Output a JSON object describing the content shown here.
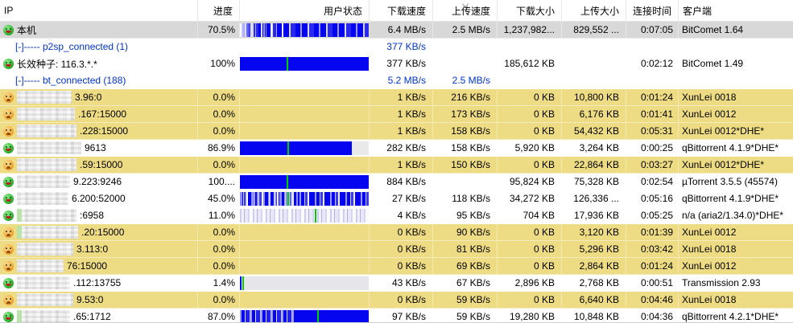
{
  "table": {
    "columns": [
      "IP",
      "进度",
      "用户状态",
      "下载速度",
      "上传速度",
      "下载大小",
      "上传大小",
      "连接时间",
      "客户端"
    ],
    "sorted_column": "上传速度",
    "sort_direction": "descending"
  },
  "colors": {
    "bar_blue": "#0505ef",
    "availability_marker_green": "#00cf00",
    "xunlei_row_yellow": "#eedc85",
    "selected_row_gray": "#d8d8d8",
    "group_text_blue": "#0033cc"
  },
  "icons": {
    "green": "happy-face-icon",
    "orange": "sad-face-icon"
  },
  "rows": [
    {
      "kind": "self",
      "icon": "green",
      "label": "本机",
      "progress": "70.5%",
      "bar": {
        "style": "self"
      },
      "dl_speed": "6.4 MB/s",
      "ul_speed": "2.5 MB/s",
      "dl_size": "1,237,982...",
      "ul_size": "829,552 ...",
      "time": "0:07:05",
      "client": "BitComet 1.64",
      "bg": "selected"
    },
    {
      "kind": "group",
      "label": "[-]----- p2sp_connected (1)",
      "progress": "",
      "bar": {
        "style": "none"
      },
      "dl_speed": "377 KB/s",
      "ul_speed": "",
      "dl_size": "",
      "ul_size": "",
      "time": "",
      "client": "",
      "bg": "white"
    },
    {
      "kind": "peer",
      "icon": "green",
      "label": "长效种子: 116.3.*.*",
      "progress": "100%",
      "bar": {
        "style": "full",
        "green": 36
      },
      "dl_speed": "377 KB/s",
      "ul_speed": "",
      "dl_size": "185,612 KB",
      "ul_size": "",
      "time": "0:02:12",
      "client": "BitComet 1.49",
      "bg": "white"
    },
    {
      "kind": "group",
      "label": "[-]----- bt_connected (188)",
      "progress": "",
      "bar": {
        "style": "none"
      },
      "dl_speed": "5.2 MB/s",
      "ul_speed": "2.5 MB/s",
      "dl_size": "",
      "ul_size": "",
      "time": "",
      "client": "",
      "bg": "white"
    },
    {
      "kind": "peer",
      "icon": "orange",
      "masked": true,
      "mask_w": 68,
      "label": "3.96:0",
      "progress": "0.0%",
      "bar": {
        "style": "none"
      },
      "dl_speed": "1 KB/s",
      "ul_speed": "216 KB/s",
      "dl_size": "0 KB",
      "ul_size": "10,800 KB",
      "time": "0:01:24",
      "client": "XunLei 0018",
      "bg": "yellow"
    },
    {
      "kind": "peer",
      "icon": "orange",
      "masked": true,
      "mask_w": 72,
      "label": ".167:15000",
      "progress": "0.0%",
      "bar": {
        "style": "none"
      },
      "dl_speed": "1 KB/s",
      "ul_speed": "173 KB/s",
      "dl_size": "0 KB",
      "ul_size": "6,176 KB",
      "time": "0:01:41",
      "client": "XunLei 0012",
      "bg": "yellow"
    },
    {
      "kind": "peer",
      "icon": "orange",
      "masked": true,
      "mask_w": 74,
      "label": ".228:15000",
      "progress": "0.0%",
      "bar": {
        "style": "none"
      },
      "dl_speed": "1 KB/s",
      "ul_speed": "158 KB/s",
      "dl_size": "0 KB",
      "ul_size": "54,432 KB",
      "time": "0:05:31",
      "client": "XunLei 0012*DHE*",
      "bg": "yellow"
    },
    {
      "kind": "peer",
      "icon": "green",
      "masked": true,
      "mask_w": 80,
      "label": "9613",
      "progress": "86.9%",
      "bar": {
        "style": "partial",
        "fill": 87,
        "green": 37
      },
      "dl_speed": "282 KB/s",
      "ul_speed": "158 KB/s",
      "dl_size": "5,920 KB",
      "ul_size": "3,264 KB",
      "time": "0:00:25",
      "client": "qBittorrent 4.1.9*DHE*",
      "bg": "white"
    },
    {
      "kind": "peer",
      "icon": "orange",
      "masked": true,
      "mask_w": 74,
      "label": ".59:15000",
      "progress": "0.0%",
      "bar": {
        "style": "none"
      },
      "dl_speed": "1 KB/s",
      "ul_speed": "150 KB/s",
      "dl_size": "0 KB",
      "ul_size": "22,864 KB",
      "time": "0:03:27",
      "client": "XunLei 0012*DHE*",
      "bg": "yellow"
    },
    {
      "kind": "peer",
      "icon": "green",
      "masked": true,
      "mask_w": 66,
      "label": "9.223:9246",
      "progress": "100....",
      "bar": {
        "style": "full",
        "green": 36
      },
      "dl_speed": "884 KB/s",
      "ul_speed": "",
      "dl_size": "95,824 KB",
      "ul_size": "75,328 KB",
      "time": "0:02:54",
      "client": "µTorrent 3.5.5 (45574)",
      "bg": "white"
    },
    {
      "kind": "peer",
      "icon": "green",
      "masked": true,
      "mask_w": 64,
      "label": "6.200:52000",
      "progress": "45.0%",
      "bar": {
        "style": "dense",
        "green": 37
      },
      "dl_speed": "27 KB/s",
      "ul_speed": "118 KB/s",
      "dl_size": "34,272 KB",
      "ul_size": "126,336 ...",
      "time": "0:05:16",
      "client": "qBittorrent 4.1.9*DHE*",
      "bg": "white"
    },
    {
      "kind": "peer",
      "icon": "green",
      "masked": true,
      "mask_w": 74,
      "tint": true,
      "label": ":6958",
      "progress": "11.0%",
      "bar": {
        "style": "light",
        "green": 58
      },
      "dl_speed": "4 KB/s",
      "ul_speed": "95 KB/s",
      "dl_size": "704 KB",
      "ul_size": "17,936 KB",
      "time": "0:05:25",
      "client": "n/a (aria2/1.34.0)*DHE*",
      "bg": "white"
    },
    {
      "kind": "peer",
      "icon": "orange",
      "masked": true,
      "mask_w": 76,
      "tint": true,
      "label": ".20:15000",
      "progress": "0.0%",
      "bar": {
        "style": "none"
      },
      "dl_speed": "0 KB/s",
      "ul_speed": "90 KB/s",
      "dl_size": "0 KB",
      "ul_size": "3,120 KB",
      "time": "0:01:39",
      "client": "XunLei 0012",
      "bg": "yellow"
    },
    {
      "kind": "peer",
      "icon": "orange",
      "masked": true,
      "mask_w": 70,
      "label": "3.113:0",
      "progress": "0.0%",
      "bar": {
        "style": "none"
      },
      "dl_speed": "0 KB/s",
      "ul_speed": "81 KB/s",
      "dl_size": "0 KB",
      "ul_size": "5,296 KB",
      "time": "0:03:42",
      "client": "XunLei 0018",
      "bg": "yellow"
    },
    {
      "kind": "peer",
      "icon": "orange",
      "masked": true,
      "mask_w": 58,
      "label": "76:15000",
      "progress": "0.0%",
      "bar": {
        "style": "none"
      },
      "dl_speed": "0 KB/s",
      "ul_speed": "69 KB/s",
      "dl_size": "0 KB",
      "ul_size": "2,864 KB",
      "time": "0:01:24",
      "client": "XunLei 0012",
      "bg": "yellow"
    },
    {
      "kind": "peer",
      "icon": "green",
      "masked": true,
      "mask_w": 66,
      "label": ".112:13755",
      "progress": "1.4%",
      "bar": {
        "style": "sliver",
        "green": 2
      },
      "dl_speed": "43 KB/s",
      "ul_speed": "67 KB/s",
      "dl_size": "2,896 KB",
      "ul_size": "2,768 KB",
      "time": "0:00:51",
      "client": "Transmission 2.93",
      "bg": "white"
    },
    {
      "kind": "peer",
      "icon": "orange",
      "masked": true,
      "mask_w": 70,
      "label": "9.53:0",
      "progress": "0.0%",
      "bar": {
        "style": "none"
      },
      "dl_speed": "0 KB/s",
      "ul_speed": "59 KB/s",
      "dl_size": "0 KB",
      "ul_size": "6,640 KB",
      "time": "0:04:46",
      "client": "XunLei 0018",
      "bg": "yellow"
    },
    {
      "kind": "peer",
      "icon": "green",
      "masked": true,
      "mask_w": 66,
      "tint": true,
      "label": ".65:1712",
      "progress": "87.0%",
      "bar": {
        "style": "mixleft",
        "green": 60
      },
      "dl_speed": "97 KB/s",
      "ul_speed": "59 KB/s",
      "dl_size": "19,280 KB",
      "ul_size": "10,848 KB",
      "time": "0:04:36",
      "client": "qBittorrent 4.2.1*DHE*",
      "bg": "white"
    }
  ]
}
